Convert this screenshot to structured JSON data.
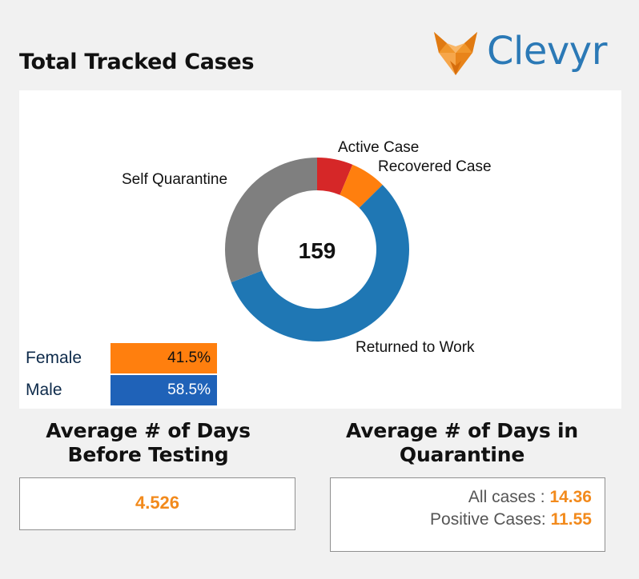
{
  "header": {
    "title": "Total Tracked Cases",
    "brand": "Clevyr",
    "brand_color": "#2b79b6",
    "logo_icon": "fox-head-icon"
  },
  "chart_data": {
    "type": "pie",
    "variant": "donut",
    "center_label": "159",
    "total": 159,
    "slices": [
      {
        "label": "Active Case",
        "value": 10,
        "color": "#d62728"
      },
      {
        "label": "Recovered Case",
        "value": 10,
        "color": "#ff7f0e"
      },
      {
        "label": "Returned to Work",
        "value": 90,
        "color": "#1f77b4"
      },
      {
        "label": "Self Quarantine",
        "value": 49,
        "color": "#7f7f7f"
      }
    ],
    "legend": "none"
  },
  "gender": [
    {
      "label": "Female",
      "value": "41.5%",
      "color": "#ff7f0e"
    },
    {
      "label": "Male",
      "value": "58.5%",
      "color": "#1f62b8"
    }
  ],
  "before_testing": {
    "heading_line1": "Average # of Days",
    "heading_line2": "Before Testing",
    "value": "4.526"
  },
  "quarantine": {
    "heading_line1": "Average # of Days in",
    "heading_line2": "Quarantine",
    "all_label": "All cases : ",
    "all_value": "14.36",
    "positive_label": "Positive Cases: ",
    "positive_value": "11.55"
  }
}
